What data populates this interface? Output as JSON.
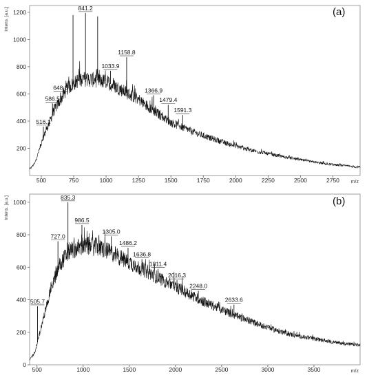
{
  "chart_data": [
    {
      "type": "line",
      "panel_label": "(a)",
      "ylabel": "Intens. [a.u.]",
      "xlabel": "m/z",
      "xlim": [
        410,
        2960
      ],
      "ylim": [
        0,
        1250
      ],
      "x_ticks": [
        500,
        750,
        1000,
        1250,
        1500,
        1750,
        2000,
        2250,
        2500,
        2750
      ],
      "y_ticks": [
        200,
        400,
        600,
        800,
        1000,
        1200
      ],
      "baseline": [
        [
          410,
          45
        ],
        [
          450,
          90
        ],
        [
          520,
          290
        ],
        [
          600,
          480
        ],
        [
          700,
          640
        ],
        [
          800,
          710
        ],
        [
          900,
          705
        ],
        [
          1000,
          690
        ],
        [
          1100,
          640
        ],
        [
          1250,
          560
        ],
        [
          1400,
          455
        ],
        [
          1500,
          390
        ],
        [
          1700,
          310
        ],
        [
          1900,
          245
        ],
        [
          2100,
          190
        ],
        [
          2300,
          150
        ],
        [
          2500,
          115
        ],
        [
          2700,
          85
        ],
        [
          2960,
          60
        ]
      ],
      "peaks": [
        {
          "x": 516.1,
          "y": 360,
          "label": "516.1"
        },
        {
          "x": 586.5,
          "y": 530,
          "label": "586.5"
        },
        {
          "x": 648.3,
          "y": 610,
          "label": "648.3"
        },
        {
          "x": 745,
          "y": 1180
        },
        {
          "x": 841.2,
          "y": 1195,
          "label": "841.2"
        },
        {
          "x": 935,
          "y": 1170
        },
        {
          "x": 1033.9,
          "y": 770,
          "label": "1033.9"
        },
        {
          "x": 1158.8,
          "y": 870,
          "label": "1158.8"
        },
        {
          "x": 1366.9,
          "y": 590,
          "label": "1366.9"
        },
        {
          "x": 1479.4,
          "y": 520,
          "label": "1479.4"
        },
        {
          "x": 1591.3,
          "y": 445,
          "label": "1591.3"
        }
      ]
    },
    {
      "type": "line",
      "panel_label": "(b)",
      "ylabel": "Intens. [a.u.]",
      "xlabel": "m/z",
      "xlim": [
        420,
        4000
      ],
      "ylim": [
        0,
        1050
      ],
      "x_ticks": [
        500,
        1000,
        1500,
        2000,
        2500,
        3000,
        3500
      ],
      "y_ticks": [
        0,
        200,
        400,
        600,
        800,
        1000
      ],
      "baseline": [
        [
          420,
          30
        ],
        [
          480,
          80
        ],
        [
          550,
          240
        ],
        [
          650,
          470
        ],
        [
          750,
          620
        ],
        [
          850,
          700
        ],
        [
          1000,
          730
        ],
        [
          1150,
          725
        ],
        [
          1300,
          690
        ],
        [
          1500,
          630
        ],
        [
          1700,
          570
        ],
        [
          1900,
          510
        ],
        [
          2100,
          450
        ],
        [
          2300,
          390
        ],
        [
          2500,
          340
        ],
        [
          2700,
          290
        ],
        [
          2900,
          250
        ],
        [
          3100,
          210
        ],
        [
          3300,
          180
        ],
        [
          3500,
          160
        ],
        [
          3700,
          140
        ],
        [
          4000,
          120
        ]
      ],
      "peaks": [
        {
          "x": 505.7,
          "y": 360,
          "label": "505.7"
        },
        {
          "x": 727.0,
          "y": 760,
          "label": "727.0"
        },
        {
          "x": 835.3,
          "y": 1000,
          "label": "835.3"
        },
        {
          "x": 986.5,
          "y": 860,
          "label": "986.5"
        },
        {
          "x": 1305.0,
          "y": 790,
          "label": "1305.0"
        },
        {
          "x": 1486.2,
          "y": 720,
          "label": "1486.2"
        },
        {
          "x": 1636.8,
          "y": 650,
          "label": "1636.8"
        },
        {
          "x": 1811.4,
          "y": 590,
          "label": "1811.4"
        },
        {
          "x": 2016.3,
          "y": 520,
          "label": "2016.3"
        },
        {
          "x": 2248.0,
          "y": 455,
          "label": "2248.0"
        },
        {
          "x": 2633.6,
          "y": 370,
          "label": "2633.6"
        }
      ]
    }
  ]
}
